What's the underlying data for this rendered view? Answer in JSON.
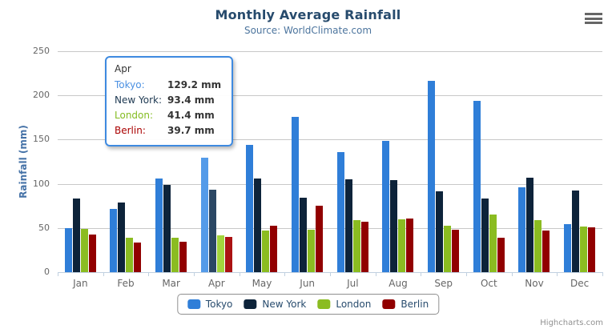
{
  "header": {
    "title": "Monthly Average Rainfall",
    "subtitle": "Source: WorldClimate.com"
  },
  "icons": {
    "context_menu": "hamburger-icon"
  },
  "chart_data": {
    "type": "bar",
    "title": "Monthly Average Rainfall",
    "subtitle": "Source: WorldClimate.com",
    "xlabel": "",
    "ylabel": "Rainfall (mm)",
    "ylim": [
      0,
      250
    ],
    "yticks": [
      0,
      50,
      100,
      150,
      200,
      250
    ],
    "grid": true,
    "legend_position": "bottom",
    "categories": [
      "Jan",
      "Feb",
      "Mar",
      "Apr",
      "May",
      "Jun",
      "Jul",
      "Aug",
      "Sep",
      "Oct",
      "Nov",
      "Dec"
    ],
    "series": [
      {
        "name": "Tokyo",
        "color": "#2f7ed8",
        "hover_color": "#549be9",
        "values": [
          49.9,
          71.5,
          106.4,
          129.2,
          144.0,
          176.0,
          135.6,
          148.5,
          216.4,
          194.1,
          95.6,
          54.4
        ]
      },
      {
        "name": "New York",
        "color": "#0d233a",
        "hover_color": "#2b4764",
        "values": [
          83.6,
          78.8,
          98.5,
          93.4,
          106.0,
          84.5,
          105.0,
          104.3,
          91.2,
          83.5,
          106.6,
          92.3
        ]
      },
      {
        "name": "London",
        "color": "#8bbc21",
        "hover_color": "#a3d53d",
        "values": [
          48.9,
          38.8,
          39.3,
          41.4,
          47.0,
          48.3,
          59.0,
          59.6,
          52.4,
          65.2,
          59.3,
          51.2
        ]
      },
      {
        "name": "Berlin",
        "color": "#910000",
        "hover_color": "#ab1212",
        "values": [
          42.4,
          33.2,
          34.5,
          39.7,
          52.6,
          75.5,
          57.4,
          60.4,
          47.6,
          39.1,
          46.8,
          51.1
        ]
      }
    ],
    "highlighted_category": "Apr",
    "highlighted_index": 3
  },
  "tooltip": {
    "header": "Apr",
    "rows": [
      {
        "label": "Tokyo:",
        "value": "129.2 mm",
        "color": "#4a90e2"
      },
      {
        "label": "New York:",
        "value": "93.4 mm",
        "color": "#1d3851"
      },
      {
        "label": "London:",
        "value": "41.4 mm",
        "color": "#84bc21"
      },
      {
        "label": "Berlin:",
        "value": "39.7 mm",
        "color": "#aa0000"
      }
    ]
  },
  "legend": {
    "items": [
      "Tokyo",
      "New York",
      "London",
      "Berlin"
    ]
  },
  "credits": {
    "label": "Highcharts.com"
  },
  "colors": {
    "title": "#274b6d",
    "subtitle": "#4d759e",
    "axis_labels": "#666666",
    "y_axis_title": "#4572a7",
    "gridline": "#c8c8c8",
    "axis_line": "#c0d0e0",
    "legend_text": "#274b6d",
    "legend_border": "#909090",
    "credits_text": "#909090",
    "tooltip_border": "#3e8ae0"
  }
}
